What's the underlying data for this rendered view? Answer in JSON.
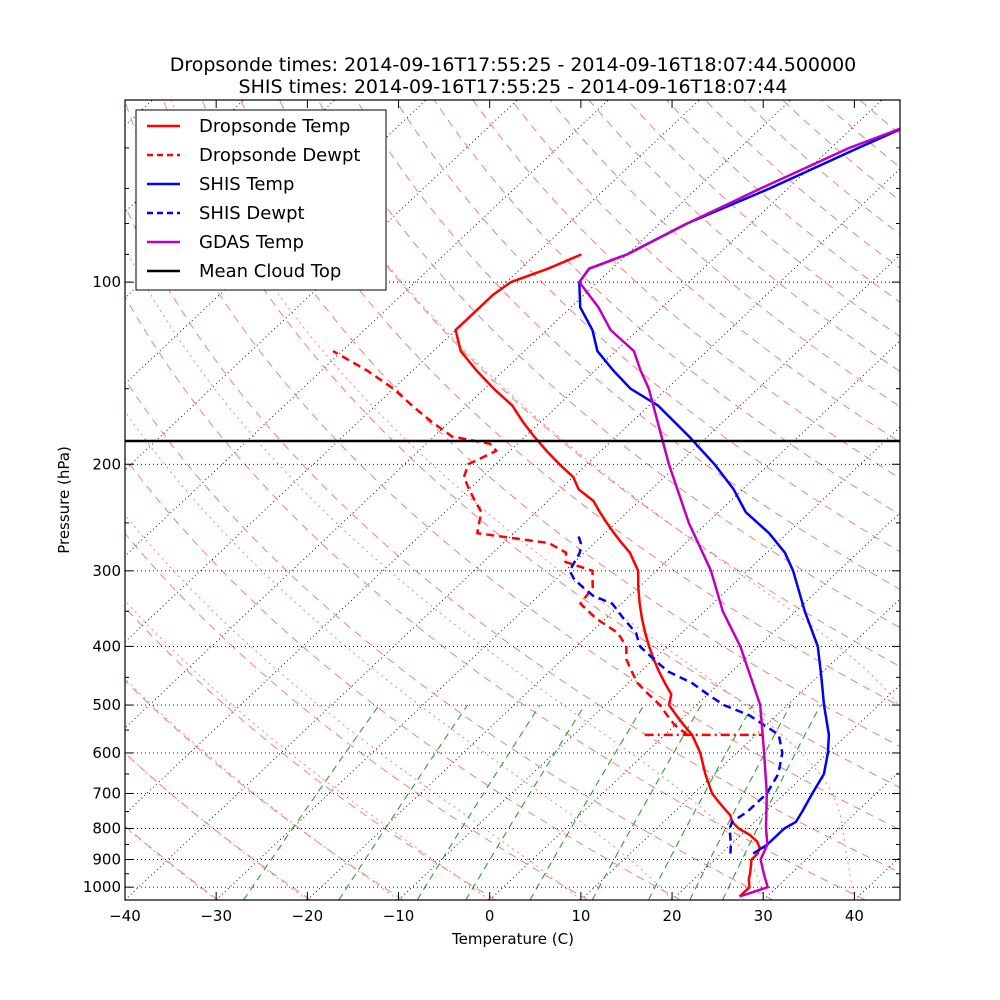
{
  "chart_data": {
    "type": "line",
    "subtype": "skew-t",
    "title_line1": "Dropsonde times: 2014-09-16T17:55:25 - 2014-09-16T18:07:44.500000",
    "title_line2": "SHIS times: 2014-09-16T17:55:25 - 2014-09-16T18:07:44",
    "xlabel": "Temperature (C)",
    "ylabel": "Pressure (hPa)",
    "xlim": [
      -40,
      45
    ],
    "ylim": [
      1050,
      50
    ],
    "x_ticks": [
      -40,
      -30,
      -20,
      -10,
      0,
      10,
      20,
      30,
      40
    ],
    "x_tick_labels": [
      "−40",
      "−30",
      "−20",
      "−10",
      "0",
      "10",
      "20",
      "30",
      "40"
    ],
    "y_ticks": [
      100,
      200,
      300,
      400,
      500,
      600,
      700,
      800,
      900,
      1000
    ],
    "y_tick_labels": [
      "100",
      "200",
      "300",
      "400",
      "500",
      "600",
      "700",
      "800",
      "900",
      "1000"
    ],
    "legend_position": "upper-left",
    "mean_cloud_top_hpa": 180,
    "series": [
      {
        "name": "Dropsonde Temp",
        "color": "#ff0000",
        "style": "solid",
        "points": [
          [
            1036,
            27
          ],
          [
            1000,
            27
          ],
          [
            970,
            26
          ],
          [
            950,
            25.5
          ],
          [
            900,
            24
          ],
          [
            880,
            24
          ],
          [
            860,
            23.5
          ],
          [
            840,
            22.5
          ],
          [
            820,
            21
          ],
          [
            800,
            19
          ],
          [
            780,
            17.5
          ],
          [
            760,
            16.5
          ],
          [
            740,
            15
          ],
          [
            720,
            13.5
          ],
          [
            700,
            12
          ],
          [
            650,
            9
          ],
          [
            600,
            6
          ],
          [
            560,
            3
          ],
          [
            540,
            1
          ],
          [
            520,
            -1
          ],
          [
            500,
            -3
          ],
          [
            480,
            -4
          ],
          [
            460,
            -6
          ],
          [
            440,
            -8
          ],
          [
            420,
            -10
          ],
          [
            400,
            -12
          ],
          [
            380,
            -14
          ],
          [
            360,
            -16
          ],
          [
            340,
            -18
          ],
          [
            320,
            -20
          ],
          [
            300,
            -22
          ],
          [
            280,
            -25
          ],
          [
            270,
            -27
          ],
          [
            260,
            -29
          ],
          [
            250,
            -31
          ],
          [
            240,
            -33
          ],
          [
            230,
            -35
          ],
          [
            220,
            -38
          ],
          [
            210,
            -40
          ],
          [
            200,
            -43
          ],
          [
            190,
            -46
          ],
          [
            180,
            -49
          ],
          [
            170,
            -52
          ],
          [
            160,
            -55
          ],
          [
            150,
            -59
          ],
          [
            140,
            -63
          ],
          [
            130,
            -67
          ],
          [
            120,
            -70
          ],
          [
            115,
            -70
          ],
          [
            110,
            -70
          ],
          [
            105,
            -70
          ],
          [
            100,
            -69.5
          ],
          [
            95,
            -67
          ],
          [
            90,
            -65
          ]
        ]
      },
      {
        "name": "Dropsonde Dewpt",
        "color": "#ff0000",
        "style": "dashed",
        "points": [
          [
            560,
            2.5
          ],
          [
            540,
            0
          ],
          [
            520,
            -2
          ],
          [
            500,
            -4
          ],
          [
            480,
            -6.5
          ],
          [
            460,
            -9
          ],
          [
            440,
            -11
          ],
          [
            420,
            -13
          ],
          [
            400,
            -14.5
          ],
          [
            380,
            -17
          ],
          [
            360,
            -21
          ],
          [
            340,
            -24.5
          ],
          [
            320,
            -25
          ],
          [
            300,
            -27
          ],
          [
            290,
            -31
          ],
          [
            280,
            -32
          ],
          [
            270,
            -35
          ],
          [
            260,
            -44
          ],
          [
            250,
            -45
          ],
          [
            240,
            -46
          ],
          [
            230,
            -48
          ],
          [
            220,
            -50
          ],
          [
            210,
            -52
          ],
          [
            200,
            -53
          ],
          [
            190,
            -51.5
          ],
          [
            185,
            -53
          ],
          [
            180,
            -58
          ],
          [
            170,
            -62
          ],
          [
            160,
            -66
          ],
          [
            150,
            -70
          ],
          [
            140,
            -75
          ],
          [
            130,
            -81
          ]
        ]
      },
      {
        "name": "SHIS Temp",
        "color": "#0000ff",
        "style": "solid",
        "points": [
          [
            880,
            23.5
          ],
          [
            850,
            24
          ],
          [
            800,
            24
          ],
          [
            780,
            24.5
          ],
          [
            750,
            24
          ],
          [
            700,
            23
          ],
          [
            650,
            22
          ],
          [
            600,
            20
          ],
          [
            560,
            18
          ],
          [
            500,
            14
          ],
          [
            450,
            10.5
          ],
          [
            400,
            6.5
          ],
          [
            350,
            1
          ],
          [
            300,
            -5
          ],
          [
            280,
            -8
          ],
          [
            260,
            -12
          ],
          [
            240,
            -17
          ],
          [
            220,
            -21
          ],
          [
            200,
            -26
          ],
          [
            180,
            -32
          ],
          [
            160,
            -39
          ],
          [
            150,
            -44
          ],
          [
            140,
            -48
          ],
          [
            130,
            -52
          ],
          [
            120,
            -55
          ],
          [
            110,
            -59
          ],
          [
            100,
            -62
          ],
          [
            95,
            -62.5
          ],
          [
            90,
            -60
          ],
          [
            80,
            -57
          ],
          [
            70,
            -52
          ],
          [
            60,
            -47
          ],
          [
            55,
            -44
          ]
        ]
      },
      {
        "name": "SHIS Dewpt",
        "color": "#0000ff",
        "style": "dashed",
        "points": [
          [
            880,
            21
          ],
          [
            850,
            20
          ],
          [
            800,
            18
          ],
          [
            780,
            17.5
          ],
          [
            750,
            18
          ],
          [
            700,
            18
          ],
          [
            650,
            17
          ],
          [
            600,
            15
          ],
          [
            560,
            12.5
          ],
          [
            520,
            7
          ],
          [
            500,
            3
          ],
          [
            480,
            0
          ],
          [
            460,
            -3
          ],
          [
            440,
            -7
          ],
          [
            420,
            -10
          ],
          [
            400,
            -13
          ],
          [
            380,
            -15
          ],
          [
            360,
            -18
          ],
          [
            340,
            -21
          ],
          [
            330,
            -24
          ],
          [
            320,
            -26
          ],
          [
            310,
            -28
          ],
          [
            300,
            -29.5
          ],
          [
            290,
            -30
          ],
          [
            280,
            -30.5
          ],
          [
            270,
            -31.5
          ],
          [
            260,
            -33
          ]
        ]
      },
      {
        "name": "GDAS Temp",
        "color": "#bf00bf",
        "style": "solid",
        "points": [
          [
            1036,
            27
          ],
          [
            1000,
            29
          ],
          [
            950,
            27
          ],
          [
            900,
            25
          ],
          [
            850,
            24
          ],
          [
            800,
            22
          ],
          [
            700,
            18
          ],
          [
            600,
            13
          ],
          [
            500,
            7
          ],
          [
            400,
            -2
          ],
          [
            350,
            -8
          ],
          [
            300,
            -14
          ],
          [
            250,
            -22
          ],
          [
            200,
            -31
          ],
          [
            150,
            -42
          ],
          [
            140,
            -45
          ],
          [
            130,
            -48
          ],
          [
            120,
            -53
          ],
          [
            110,
            -57
          ],
          [
            100,
            -62
          ],
          [
            95,
            -62.5
          ],
          [
            90,
            -60
          ],
          [
            80,
            -57
          ],
          [
            70,
            -53
          ],
          [
            60,
            -48
          ],
          [
            55,
            -44
          ]
        ]
      },
      {
        "name": "Mean Cloud Top",
        "color": "#000000",
        "style": "solid",
        "points": []
      }
    ],
    "horizontal_segment": {
      "series": "Dropsonde Dewpt",
      "pressure_hpa": 560,
      "x_from": 17,
      "x_to": 30,
      "style": "dashdot",
      "color": "#ff0000"
    }
  }
}
